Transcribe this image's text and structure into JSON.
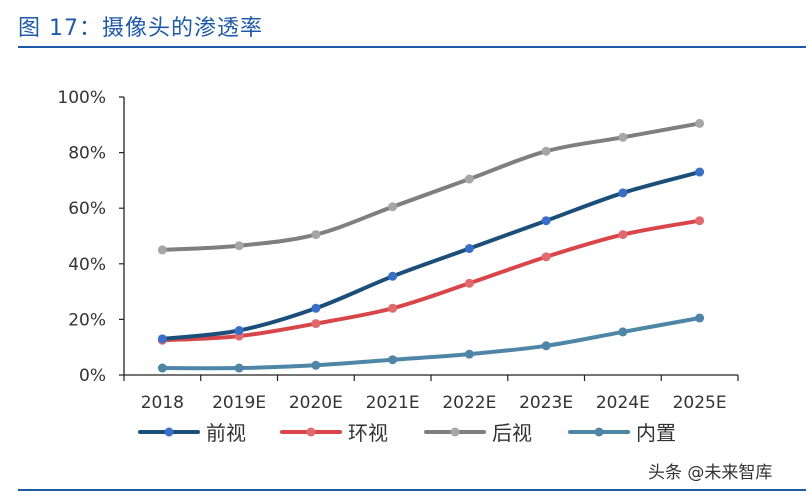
{
  "figure": {
    "title": "图 17：摄像头的渗透率",
    "watermark": "头条 @未来智库"
  },
  "chart_data": {
    "type": "line",
    "categories": [
      "2018",
      "2019E",
      "2020E",
      "2021E",
      "2022E",
      "2023E",
      "2024E",
      "2025E"
    ],
    "ylim": [
      0,
      100
    ],
    "yticks": [
      "0%",
      "20%",
      "40%",
      "60%",
      "80%",
      "100%"
    ],
    "ytick_values": [
      0,
      20,
      40,
      60,
      80,
      100
    ],
    "grid": false,
    "legend_position": "bottom",
    "series": [
      {
        "name": "前视",
        "color": "#1b4f7a",
        "marker_color": "#3a6fc8",
        "values": [
          13,
          16,
          24,
          35.5,
          45.5,
          55.5,
          65.5,
          73
        ]
      },
      {
        "name": "环视",
        "color": "#d9464a",
        "marker_color": "#e06a6d",
        "values": [
          12.5,
          14,
          18.5,
          24,
          33,
          42.5,
          50.5,
          55.5
        ]
      },
      {
        "name": "后视",
        "color": "#7f7f7f",
        "marker_color": "#a6a6a6",
        "values": [
          45,
          46.5,
          50.5,
          60.5,
          70.5,
          80.5,
          85.5,
          90.5
        ]
      },
      {
        "name": "内置",
        "color": "#4f86a8",
        "marker_color": "#4f86a8",
        "values": [
          2.5,
          2.5,
          3.5,
          5.5,
          7.5,
          10.5,
          15.5,
          20.5
        ]
      }
    ]
  }
}
